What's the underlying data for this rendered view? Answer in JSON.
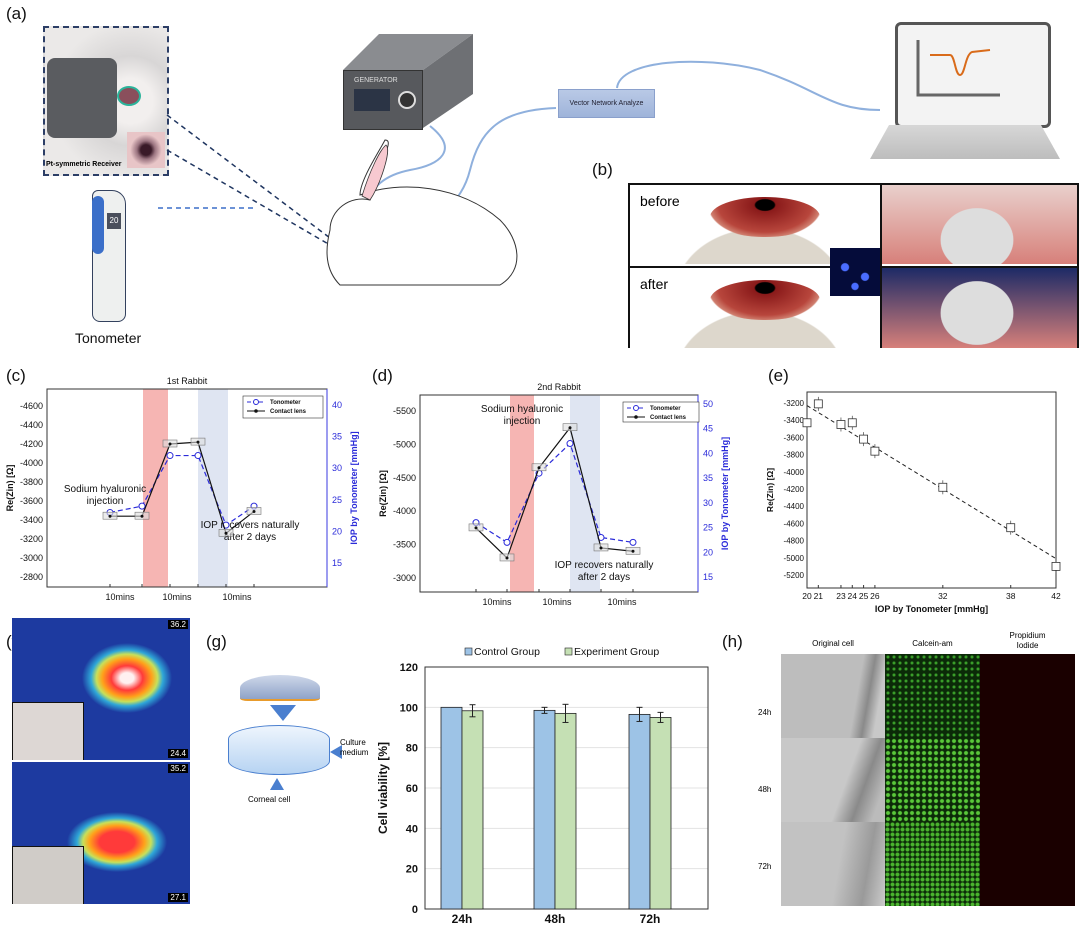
{
  "panels": {
    "a": {
      "label": "(a)",
      "receiver_label": "Pt-symmetric Receiver",
      "tonometer_label": "Tonometer",
      "tonometer_reading": "20",
      "generator_label": "GENERATOR",
      "vna_label": "Vector Network Analyze"
    },
    "b": {
      "label": "(b)",
      "before": "before",
      "after": "after"
    },
    "c": {
      "label": "(c)"
    },
    "d": {
      "label": "(d)"
    },
    "e": {
      "label": "(e)"
    },
    "f": {
      "label": "(f)",
      "top_max": "36.2",
      "top_min": "24.4",
      "bottom_max": "35.2",
      "bottom_min": "27.1"
    },
    "g": {
      "label": "(g)",
      "culture_medium": [
        "Culture",
        "medium"
      ],
      "corneal_cell": "Corneal cell"
    },
    "h": {
      "label": "(h)",
      "columns": [
        "Original cell",
        "Calcein-am",
        "Propidium\nIodide"
      ],
      "rows": [
        "24h",
        "48h",
        "72h"
      ]
    }
  },
  "colors": {
    "tonometer": "#2b2bd9",
    "contact_lens": "#111111",
    "injection_band": "#f6b5b3",
    "recovery_band": "#dfe5f2",
    "control": "#9dc3e6",
    "experiment": "#c5e0b4",
    "cable": "#8fb0dd"
  },
  "chart_data": [
    {
      "id": "c",
      "type": "line",
      "title": "1st Rabbit",
      "ylabel": "Re(Zin) [Ω]",
      "y2label": "IOP by Tonometer [mmHg]",
      "yticks": [
        -4600,
        -4400,
        -4200,
        -4000,
        -3800,
        -3600,
        -3400,
        -3200,
        -3000,
        -2800
      ],
      "y2ticks": [
        40,
        35,
        30,
        25,
        20,
        15
      ],
      "y_reversed": true,
      "x_tick_labels": [
        "10mins",
        "10mins",
        "10mins"
      ],
      "legend": [
        "Tonometer",
        "Contact lens"
      ],
      "legend_position": "top-right",
      "annotations": {
        "injection": [
          "Sodium hyaluronic",
          "injection"
        ],
        "recovery": [
          "IOP recovers naturally",
          "after 2 days"
        ]
      },
      "series": [
        {
          "name": "Tonometer",
          "axis": "right",
          "values": [
            23,
            24,
            32,
            32,
            21,
            24
          ]
        },
        {
          "name": "Contact lens",
          "axis": "left",
          "values": [
            -3440,
            -3440,
            -4200,
            -4220,
            -3260,
            -3490
          ]
        }
      ]
    },
    {
      "id": "d",
      "type": "line",
      "title": "2nd Rabbit",
      "ylabel": "Re(Zin) [Ω]",
      "y2label": "IOP by Tonometer [mmHg]",
      "yticks": [
        -5500,
        -5000,
        -4500,
        -4000,
        -3500,
        -3000
      ],
      "y2ticks": [
        50,
        45,
        40,
        35,
        30,
        25,
        20,
        15
      ],
      "y_reversed": true,
      "x_tick_labels": [
        "10mins",
        "10mins",
        "10mins"
      ],
      "legend": [
        "Tonometer",
        "Contact lens"
      ],
      "legend_position": "top-right",
      "annotations": {
        "injection": [
          "Sodium hyaluronic",
          "injection"
        ],
        "recovery": [
          "IOP recovers naturally",
          "after 2 days"
        ]
      },
      "series": [
        {
          "name": "Tonometer",
          "axis": "right",
          "values": [
            26,
            22,
            36,
            42,
            23,
            22
          ]
        },
        {
          "name": "Contact lens",
          "axis": "left",
          "values": [
            -3750,
            -3300,
            -4650,
            -5250,
            -3450,
            -3400
          ]
        }
      ]
    },
    {
      "id": "e",
      "type": "scatter",
      "xlabel": "IOP by Tonometer [mmHg]",
      "ylabel": "Re(Zin) [Ω]",
      "xticks": [
        20,
        21,
        23,
        24,
        25,
        26,
        32,
        38,
        42
      ],
      "yticks": [
        -3200,
        -3400,
        -3600,
        -3800,
        -4000,
        -4200,
        -4400,
        -4600,
        -4800,
        -5000,
        -5200
      ],
      "xlim": [
        20,
        42
      ],
      "points": [
        {
          "x": 20,
          "y": -3430
        },
        {
          "x": 21,
          "y": -3210
        },
        {
          "x": 23,
          "y": -3450
        },
        {
          "x": 24,
          "y": -3430
        },
        {
          "x": 25,
          "y": -3620
        },
        {
          "x": 26,
          "y": -3760
        },
        {
          "x": 32,
          "y": -4180
        },
        {
          "x": 38,
          "y": -4650
        },
        {
          "x": 42,
          "y": -5100
        }
      ],
      "fit_line": [
        {
          "x": 20,
          "y": -3230
        },
        {
          "x": 42,
          "y": -5010
        }
      ]
    },
    {
      "id": "g",
      "type": "bar",
      "ylabel": "Cell viability [%]",
      "categories": [
        "24h",
        "48h",
        "72h"
      ],
      "yticks": [
        0,
        20,
        40,
        60,
        80,
        100,
        120
      ],
      "ylim": [
        0,
        120
      ],
      "legend_position": "top",
      "series": [
        {
          "name": "Control Group",
          "values": [
            100,
            98.5,
            96.5
          ],
          "errors": [
            0,
            1.5,
            3.5
          ]
        },
        {
          "name": "Experiment Group",
          "values": [
            98.3,
            97,
            95
          ],
          "errors": [
            3,
            4.5,
            2.5
          ]
        }
      ]
    }
  ]
}
